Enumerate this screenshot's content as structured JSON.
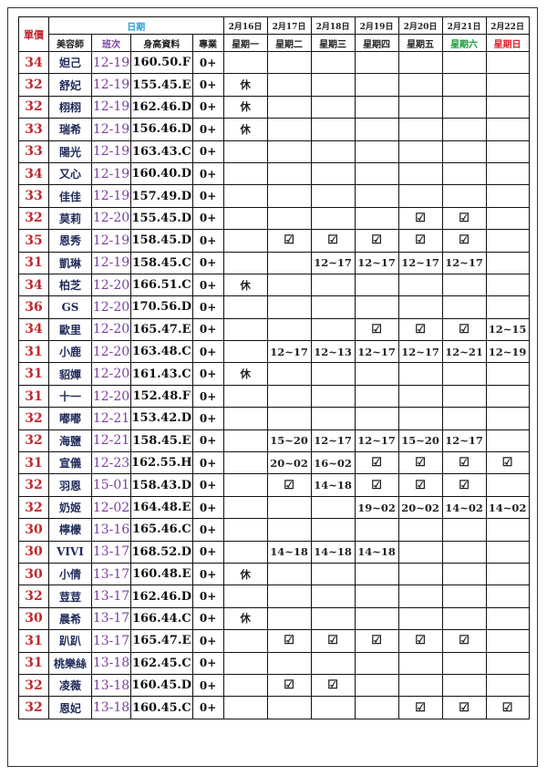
{
  "header": {
    "price": "單價",
    "date_group": "日期",
    "beautician": "美容師",
    "shift": "班次",
    "height_data": "身高資料",
    "specialty": "專業",
    "dates": [
      "2月16日",
      "2月17日",
      "2月18日",
      "2月19日",
      "2月20日",
      "2月21日",
      "2月22日"
    ],
    "weekdays": [
      "星期一",
      "星期二",
      "星期三",
      "星期四",
      "星期五",
      "星期六",
      "星期日"
    ]
  },
  "colors": {
    "price": "#c0282d",
    "shift": "#7b3fa0",
    "date_header": "#2aa0d8",
    "saturday": "#1a9a3a",
    "sunday": "#e0202a"
  },
  "check_icon": "☑",
  "rows": [
    {
      "price": "34",
      "name": "妲己",
      "shift": "12-19",
      "height": "160.50.F",
      "pro": "0+",
      "days": [
        "",
        "",
        "",
        "",
        "",
        "",
        ""
      ]
    },
    {
      "price": "32",
      "name": "舒妃",
      "shift": "12-19",
      "height": "155.45.E",
      "pro": "0+",
      "days": [
        "休",
        "",
        "",
        "",
        "",
        "",
        ""
      ]
    },
    {
      "price": "32",
      "name": "栩栩",
      "shift": "12-19",
      "height": "162.46.D",
      "pro": "0+",
      "days": [
        "休",
        "",
        "",
        "",
        "",
        "",
        ""
      ]
    },
    {
      "price": "33",
      "name": "瑞希",
      "shift": "12-19",
      "height": "156.46.D",
      "pro": "0+",
      "days": [
        "休",
        "",
        "",
        "",
        "",
        "",
        ""
      ]
    },
    {
      "price": "33",
      "name": "陽光",
      "shift": "12-19",
      "height": "163.43.C",
      "pro": "0+",
      "days": [
        "",
        "",
        "",
        "",
        "",
        "",
        ""
      ]
    },
    {
      "price": "34",
      "name": "又心",
      "shift": "12-19",
      "height": "160.40.D",
      "pro": "0+",
      "days": [
        "",
        "",
        "",
        "",
        "",
        "",
        ""
      ]
    },
    {
      "price": "33",
      "name": "佳佳",
      "shift": "12-19",
      "height": "157.49.D",
      "pro": "0+",
      "days": [
        "",
        "",
        "",
        "",
        "",
        "",
        ""
      ]
    },
    {
      "price": "32",
      "name": "莫莉",
      "shift": "12-20",
      "height": "155.45.D",
      "pro": "0+",
      "days": [
        "",
        "",
        "",
        "",
        "☑",
        "☑",
        ""
      ]
    },
    {
      "price": "35",
      "name": "恩秀",
      "shift": "12-19",
      "height": "158.45.D",
      "pro": "0+",
      "days": [
        "",
        "☑",
        "☑",
        "☑",
        "☑",
        "☑",
        ""
      ]
    },
    {
      "price": "31",
      "name": "凱琳",
      "shift": "12-19",
      "height": "158.45.C",
      "pro": "0+",
      "days": [
        "",
        "",
        "12~17",
        "12~17",
        "12~17",
        "12~17",
        ""
      ]
    },
    {
      "price": "34",
      "name": "柏芝",
      "shift": "12-20",
      "height": "166.51.C",
      "pro": "0+",
      "days": [
        "休",
        "",
        "",
        "",
        "",
        "",
        ""
      ]
    },
    {
      "price": "36",
      "name": "GS",
      "shift": "12-20",
      "height": "170.56.D",
      "pro": "0+",
      "days": [
        "",
        "",
        "",
        "",
        "",
        "",
        ""
      ]
    },
    {
      "price": "34",
      "name": "歐里",
      "shift": "12-20",
      "height": "165.47.E",
      "pro": "0+",
      "days": [
        "",
        "",
        "",
        "☑",
        "☑",
        "☑",
        "12~15"
      ]
    },
    {
      "price": "31",
      "name": "小鹿",
      "shift": "12-20",
      "height": "163.48.C",
      "pro": "0+",
      "days": [
        "",
        "12~17",
        "12~13",
        "12~17",
        "12~17",
        "12~21",
        "12~19"
      ]
    },
    {
      "price": "31",
      "name": "貂嬋",
      "shift": "12-20",
      "height": "161.43.C",
      "pro": "0+",
      "days": [
        "休",
        "",
        "",
        "",
        "",
        "",
        ""
      ]
    },
    {
      "price": "31",
      "name": "十一",
      "shift": "12-20",
      "height": "152.48.F",
      "pro": "0+",
      "days": [
        "",
        "",
        "",
        "",
        "",
        "",
        ""
      ]
    },
    {
      "price": "32",
      "name": "嘟嘟",
      "shift": "12-21",
      "height": "153.42.D",
      "pro": "0+",
      "days": [
        "",
        "",
        "",
        "",
        "",
        "",
        ""
      ]
    },
    {
      "price": "32",
      "name": "海鹽",
      "shift": "12-21",
      "height": "158.45.E",
      "pro": "0+",
      "days": [
        "",
        "15~20",
        "12~17",
        "12~17",
        "15~20",
        "12~17",
        ""
      ]
    },
    {
      "price": "31",
      "name": "宣儀",
      "shift": "12-23",
      "height": "162.55.H",
      "pro": "0+",
      "days": [
        "",
        "20~02",
        "16~02",
        "☑",
        "☑",
        "☑",
        "☑"
      ]
    },
    {
      "price": "32",
      "name": "羽恩",
      "shift": "15-01",
      "height": "158.43.D",
      "pro": "0+",
      "days": [
        "",
        "☑",
        "14~18",
        "☑",
        "☑",
        "☑",
        ""
      ]
    },
    {
      "price": "32",
      "name": "奶姬",
      "shift": "12-02",
      "height": "164.48.E",
      "pro": "0+",
      "days": [
        "",
        "",
        "",
        "19~02",
        "20~02",
        "14~02",
        "14~02"
      ]
    },
    {
      "price": "30",
      "name": "檸檬",
      "shift": "13-16",
      "height": "165.46.C",
      "pro": "0+",
      "days": [
        "",
        "",
        "",
        "",
        "",
        "",
        ""
      ]
    },
    {
      "price": "30",
      "name": "VIVI",
      "shift": "13-17",
      "height": "168.52.D",
      "pro": "0+",
      "days": [
        "",
        "14~18",
        "14~18",
        "14~18",
        "",
        "",
        ""
      ]
    },
    {
      "price": "30",
      "name": "小倩",
      "shift": "13-17",
      "height": "160.48.E",
      "pro": "0+",
      "days": [
        "休",
        "",
        "",
        "",
        "",
        "",
        ""
      ]
    },
    {
      "price": "32",
      "name": "荳荳",
      "shift": "13-17",
      "height": "162.46.D",
      "pro": "0+",
      "days": [
        "",
        "",
        "",
        "",
        "",
        "",
        ""
      ]
    },
    {
      "price": "30",
      "name": "晨希",
      "shift": "13-17",
      "height": "166.44.C",
      "pro": "0+",
      "days": [
        "休",
        "",
        "",
        "",
        "",
        "",
        ""
      ]
    },
    {
      "price": "31",
      "name": "趴趴",
      "shift": "13-17",
      "height": "165.47.E",
      "pro": "0+",
      "days": [
        "",
        "☑",
        "☑",
        "☑",
        "☑",
        "☑",
        ""
      ]
    },
    {
      "price": "31",
      "name": "桃樂絲",
      "shift": "13-18",
      "height": "162.45.C",
      "pro": "0+",
      "days": [
        "",
        "",
        "",
        "",
        "",
        "",
        ""
      ]
    },
    {
      "price": "32",
      "name": "凌薇",
      "shift": "13-18",
      "height": "160.45.D",
      "pro": "0+",
      "days": [
        "",
        "☑",
        "☑",
        "",
        "",
        "",
        ""
      ]
    },
    {
      "price": "32",
      "name": "恩妃",
      "shift": "13-18",
      "height": "160.45.C",
      "pro": "0+",
      "days": [
        "",
        "",
        "",
        "",
        "☑",
        "☑",
        "☑"
      ]
    }
  ]
}
